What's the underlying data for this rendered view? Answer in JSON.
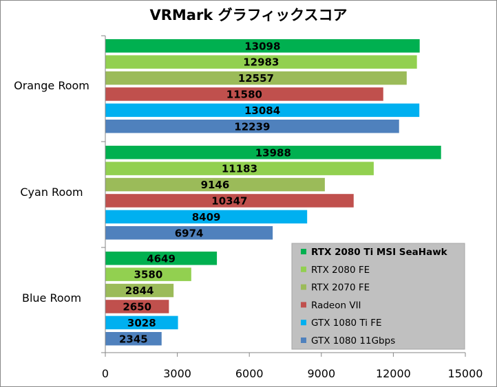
{
  "chart_data": {
    "type": "bar",
    "orientation": "horizontal",
    "title": "VRMark グラフィックスコア",
    "categories": [
      "Orange Room",
      "Cyan Room",
      "Blue Room"
    ],
    "xlim": [
      0,
      15000
    ],
    "xticks": [
      0,
      3000,
      6000,
      9000,
      12000,
      15000
    ],
    "grid": false,
    "legend_position": "bottom-right",
    "series": [
      {
        "name": "RTX 2080 Ti MSI SeaHawk",
        "color": "#00b050",
        "values": [
          13098,
          13988,
          4649
        ]
      },
      {
        "name": "RTX 2080 FE",
        "color": "#92d050",
        "values": [
          12983,
          11183,
          3580
        ]
      },
      {
        "name": "RTX 2070 FE",
        "color": "#9bbb59",
        "values": [
          12557,
          9146,
          2844
        ]
      },
      {
        "name": "Radeon VII",
        "color": "#c0504d",
        "values": [
          11580,
          10347,
          2650
        ]
      },
      {
        "name": "GTX 1080 Ti FE",
        "color": "#00b0f0",
        "values": [
          13084,
          8409,
          3028
        ]
      },
      {
        "name": "GTX 1080 11Gbps",
        "color": "#4f81bd",
        "values": [
          12239,
          6974,
          2345
        ]
      }
    ]
  }
}
